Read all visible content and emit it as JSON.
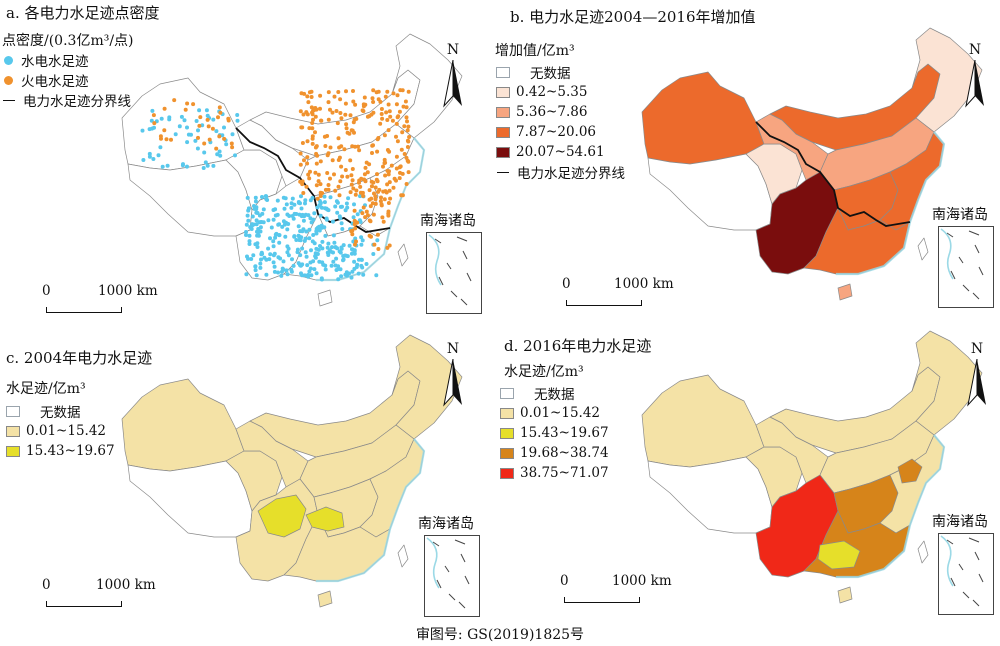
{
  "colors": {
    "hydro_dot": "#58c8ec",
    "thermal_dot": "#f0922e",
    "nodata_border": "#9aa4ad",
    "base_fill": "#f4e2a6",
    "coast": "#9bd9e6"
  },
  "icons": {
    "north_arrow": "north-arrow-icon"
  },
  "north_label": "N",
  "scale": {
    "zero": "0",
    "km": "1000 km"
  },
  "inset_label": "南海诸岛",
  "approval": "审图号: GS(2019)1825号",
  "panel_a": {
    "title": "a. 各电力水足迹点密度",
    "legend_title": "点密度/(0.3亿m³/点)",
    "legend": [
      {
        "label": "水电水足迹",
        "symbol": "dot",
        "color": "#58c8ec"
      },
      {
        "label": "火电水足迹",
        "symbol": "dot",
        "color": "#f0922e"
      },
      {
        "label": "电力水足迹分界线",
        "symbol": "line",
        "color": "#111111"
      }
    ]
  },
  "panel_b": {
    "title": "b. 电力水足迹2004—2016年增加值",
    "legend_title": "增加值/亿m³",
    "legend": [
      {
        "label": "无数据",
        "symbol": "nodata",
        "color": "#ffffff"
      },
      {
        "label": "0.42~5.35",
        "symbol": "box",
        "color": "#fbe3d4"
      },
      {
        "label": "5.36~7.86",
        "symbol": "box",
        "color": "#f7a580"
      },
      {
        "label": "7.87~20.06",
        "symbol": "box",
        "color": "#ec6a2c"
      },
      {
        "label": "20.07~54.61",
        "symbol": "box",
        "color": "#7a0d0d"
      },
      {
        "label": "电力水足迹分界线",
        "symbol": "line",
        "color": "#111111"
      }
    ]
  },
  "panel_c": {
    "title": "c. 2004年电力水足迹",
    "legend_title": "水足迹/亿m³",
    "legend": [
      {
        "label": "无数据",
        "symbol": "nodata",
        "color": "#ffffff"
      },
      {
        "label": "0.01~15.42",
        "symbol": "box",
        "color": "#f4e2a6"
      },
      {
        "label": "15.43~19.67",
        "symbol": "box",
        "color": "#e6df2a"
      }
    ]
  },
  "panel_d": {
    "title": "d. 2016年电力水足迹",
    "legend_title": "水足迹/亿m³",
    "legend": [
      {
        "label": "无数据",
        "symbol": "nodata",
        "color": "#ffffff"
      },
      {
        "label": "0.01~15.42",
        "symbol": "box",
        "color": "#f4e2a6"
      },
      {
        "label": "15.43~19.67",
        "symbol": "box",
        "color": "#e6df2a"
      },
      {
        "label": "19.68~38.74",
        "symbol": "box",
        "color": "#d6841a"
      },
      {
        "label": "38.75~71.07",
        "symbol": "box",
        "color": "#f02818"
      }
    ]
  },
  "region_fills": {
    "b": {
      "tibet": "#ffffff",
      "xinjiang": "#ec6a2c",
      "qinghai": "#fbe3d4",
      "gansu": "#f7a580",
      "inner_mongolia": "#ec6a2c",
      "northeast": "#fbe3d4",
      "north": "#f7a580",
      "sichuan_yunnan": "#7a0d0d",
      "central": "#ec6a2c",
      "east": "#ec6a2c",
      "south": "#ec6a2c",
      "hainan": "#f7a580",
      "taiwan": "#ffffff"
    },
    "c": {
      "tibet": "#ffffff",
      "xinjiang": "#f4e2a6",
      "qinghai": "#f4e2a6",
      "gansu": "#f4e2a6",
      "inner_mongolia": "#f4e2a6",
      "northeast": "#f4e2a6",
      "north": "#f4e2a6",
      "sichuan_yunnan": "#f4e2a6",
      "central": "#f4e2a6",
      "east": "#f4e2a6",
      "south": "#f4e2a6",
      "hainan": "#f4e2a6",
      "taiwan": "#ffffff",
      "sichuan": "#e6df2a",
      "hubei": "#e6df2a"
    },
    "d": {
      "tibet": "#ffffff",
      "xinjiang": "#f4e2a6",
      "qinghai": "#f4e2a6",
      "gansu": "#f4e2a6",
      "inner_mongolia": "#f4e2a6",
      "northeast": "#f4e2a6",
      "north": "#f4e2a6",
      "sichuan_yunnan": "#f02818",
      "central": "#d6841a",
      "east": "#f4e2a6",
      "south": "#d6841a",
      "hainan": "#f4e2a6",
      "taiwan": "#ffffff",
      "guangxi": "#e6df2a",
      "shandong": "#d6841a"
    }
  }
}
